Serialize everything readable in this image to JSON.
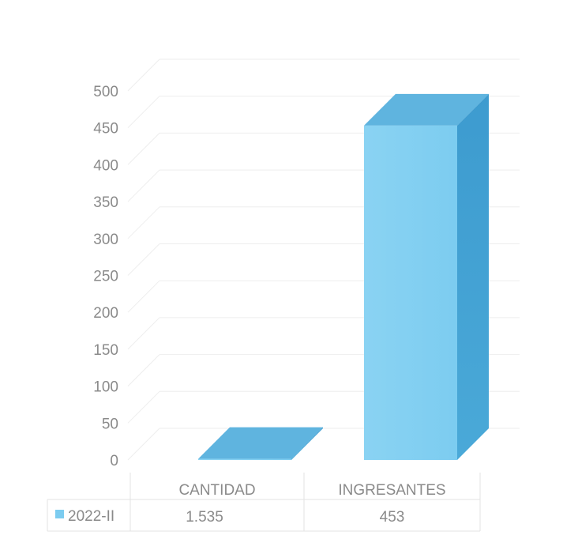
{
  "chart_data": {
    "type": "bar",
    "categories": [
      "CANTIDAD",
      "INGRESANTES"
    ],
    "series": [
      {
        "name": "2022-II",
        "values": [
          1.535,
          453
        ],
        "labels": [
          "1.535",
          "453"
        ]
      }
    ],
    "ylim": [
      0,
      500
    ],
    "yticks": [
      0,
      50,
      100,
      150,
      200,
      250,
      300,
      350,
      400,
      450,
      500
    ],
    "grid": true,
    "legend_placement": "left of data table",
    "three_d": true,
    "data_table": true
  },
  "colors": {
    "bar_front": "#7cccf0",
    "bar_side": "#4aa9d8",
    "bar_top": "#5fb4df",
    "gridline": "#eeeeee",
    "text": "#8a8a8a",
    "table_border": "#e3e3e3"
  }
}
